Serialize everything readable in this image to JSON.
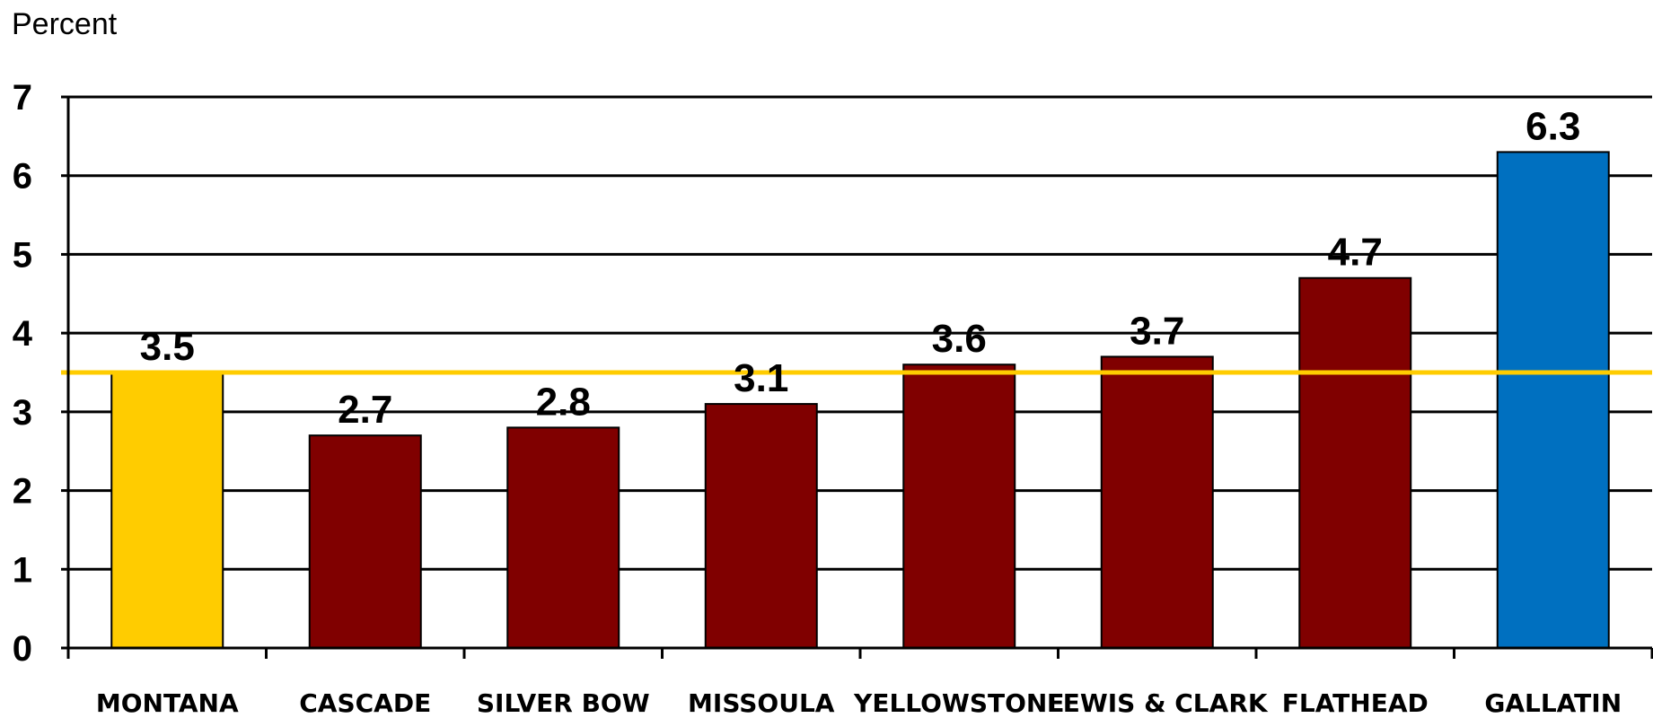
{
  "chart_data": {
    "type": "bar",
    "title": "",
    "xlabel": "",
    "ylabel": "Percent",
    "ylim": [
      0,
      7
    ],
    "yticks": [
      0,
      1,
      2,
      3,
      4,
      5,
      6,
      7
    ],
    "grid": true,
    "categories": [
      "MONTANA",
      "CASCADE",
      "SILVER BOW",
      "MISSOULA",
      "YELLOWSTONE",
      "LEWIS & CLARK",
      "FLATHEAD",
      "GALLATIN"
    ],
    "values": [
      3.5,
      2.7,
      2.8,
      3.1,
      3.6,
      3.7,
      4.7,
      6.3
    ],
    "data_labels": [
      "3.5",
      "2.7",
      "2.8",
      "3.1",
      "3.6",
      "3.7",
      "4.7",
      "6.3"
    ],
    "bar_colors": [
      "#FFCC00",
      "#800000",
      "#800000",
      "#800000",
      "#800000",
      "#800000",
      "#800000",
      "#0070C0"
    ],
    "reference_line": {
      "value": 3.5,
      "color": "#FFCC00"
    }
  }
}
